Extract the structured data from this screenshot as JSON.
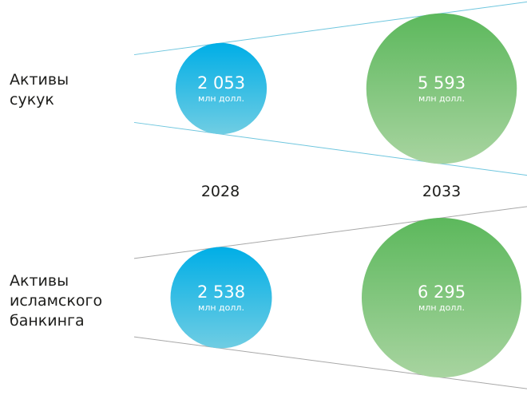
{
  "chart_data": {
    "type": "bubble",
    "title": "",
    "categories": [
      "Активы сукук",
      "Активы исламского банкинга"
    ],
    "years": [
      "2028",
      "2033"
    ],
    "series": [
      {
        "name": "Активы сукук",
        "label": "Активы\nсукук",
        "values": [
          2053,
          5593
        ],
        "value_labels": [
          "2 053",
          "5 593"
        ]
      },
      {
        "name": "Активы исламского банкинга",
        "label": "Активы\nисламского\nбанкинга",
        "values": [
          2538,
          6295
        ],
        "value_labels": [
          "2 538",
          "6 295"
        ]
      }
    ],
    "unit": "млн долл.",
    "colors": {
      "2028": [
        "#00aee6",
        "#6fcde3"
      ],
      "2033": [
        "#5cb85c",
        "#a8d4a0"
      ]
    },
    "guide_line_colors": [
      "#6fc6de",
      "#a8a8a8"
    ]
  }
}
